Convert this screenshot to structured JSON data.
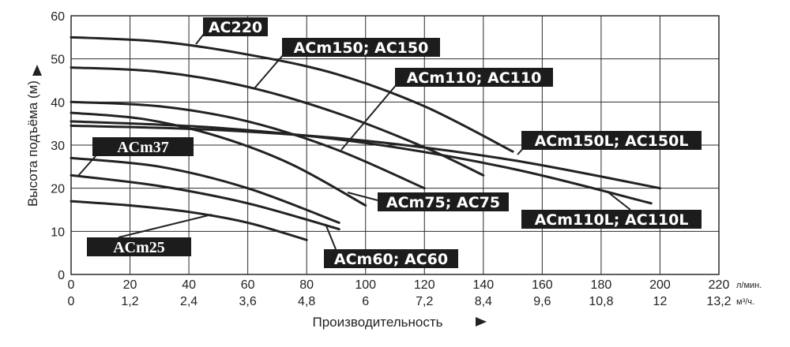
{
  "chart_data": {
    "type": "line",
    "title": "",
    "xlabel": "Производительность",
    "x_unit_primary": "л/мин.",
    "x_unit_secondary": "м³/ч.",
    "ylabel": "Высота подъёма (м)",
    "xlim": [
      0,
      220
    ],
    "ylim": [
      0,
      60
    ],
    "grid": true,
    "x_ticks_primary": [
      "0",
      "20",
      "40",
      "60",
      "80",
      "100",
      "120",
      "140",
      "160",
      "180",
      "200",
      "220"
    ],
    "x_ticks_secondary": [
      "0",
      "1,2",
      "2,4",
      "3,6",
      "4,8",
      "6",
      "7,2",
      "8,4",
      "9,6",
      "10,8",
      "12",
      "13,2"
    ],
    "y_ticks": [
      "0",
      "10",
      "20",
      "30",
      "40",
      "50",
      "60"
    ],
    "series": [
      {
        "name": "AC220",
        "x": [
          0,
          30,
          60,
          90,
          120,
          150
        ],
        "y": [
          55,
          54,
          51,
          46.5,
          39,
          28.5
        ]
      },
      {
        "name": "ACm150; AC150",
        "x": [
          0,
          30,
          60,
          90,
          120,
          140
        ],
        "y": [
          48,
          47,
          43.5,
          37.5,
          29.5,
          23
        ]
      },
      {
        "name": "ACm110; AC110",
        "x": [
          0,
          30,
          60,
          90,
          120
        ],
        "y": [
          40,
          39,
          35.5,
          29,
          20
        ]
      },
      {
        "name": "ACm150L; AC150L",
        "x": [
          0,
          50,
          100,
          150,
          200
        ],
        "y": [
          34.5,
          33.5,
          31,
          26.5,
          20
        ]
      },
      {
        "name": "ACm110L; AC110L",
        "x": [
          0,
          50,
          100,
          150,
          197
        ],
        "y": [
          35.5,
          34,
          30.5,
          24.5,
          16.5
        ]
      },
      {
        "name": "ACm75; AC75",
        "x": [
          0,
          25,
          50,
          75,
          100
        ],
        "y": [
          37.5,
          36,
          32,
          25.5,
          16
        ]
      },
      {
        "name": "ACm60; AC60",
        "x": [
          0,
          30,
          60,
          91
        ],
        "y": [
          27,
          25,
          20,
          12
        ]
      },
      {
        "name": "ACm37",
        "x": [
          0,
          30,
          60,
          91
        ],
        "y": [
          23,
          20.5,
          16.5,
          10.5
        ]
      },
      {
        "name": "ACm25",
        "x": [
          0,
          20,
          40,
          60,
          80
        ],
        "y": [
          17,
          16,
          14.5,
          12,
          8
        ]
      }
    ],
    "labels": [
      {
        "text": "AC220",
        "series": "AC220"
      },
      {
        "text": "ACm150; AC150",
        "series": "ACm150; AC150"
      },
      {
        "text": "ACm110; AC110",
        "series": "ACm110; AC110"
      },
      {
        "text": "ACm150L; AC150L",
        "series": "ACm150L; AC150L"
      },
      {
        "text": "ACm37",
        "series": "ACm37"
      },
      {
        "text": "ACm75; AC75",
        "series": "ACm75; AC75"
      },
      {
        "text": "ACm110L; AC110L",
        "series": "ACm110L; AC110L"
      },
      {
        "text": "ACm25",
        "series": "ACm25"
      },
      {
        "text": "ACm60; AC60",
        "series": "ACm60; AC60"
      }
    ]
  }
}
